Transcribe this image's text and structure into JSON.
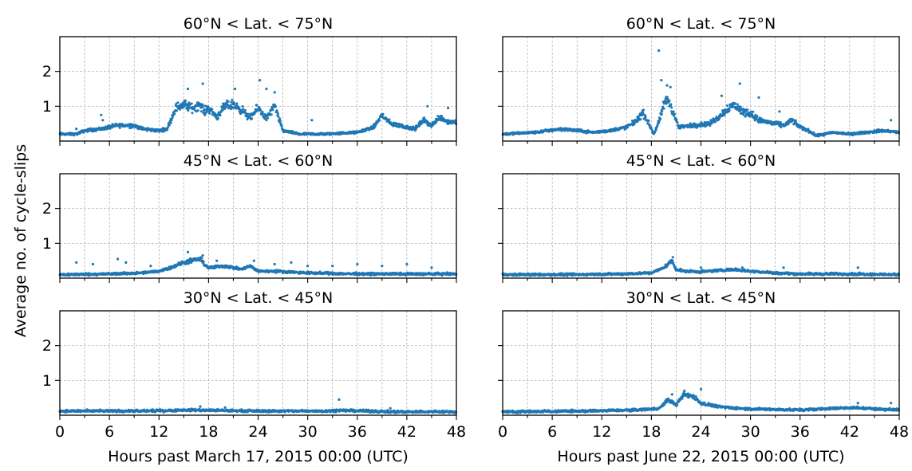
{
  "figure": {
    "ylabel": "Average no. of cycle-slips",
    "series_color": "#1f77b4"
  },
  "chart_data": [
    {
      "type": "scatter",
      "panel": "March 17 2015, high latitude",
      "title": "60°N < Lat. < 75°N",
      "xlabel": "",
      "ylabel": "",
      "xlim": [
        0,
        48
      ],
      "ylim": [
        0,
        3
      ],
      "xticks": [
        0,
        6,
        12,
        18,
        24,
        30,
        36,
        42,
        48
      ],
      "yticks": [
        1,
        2
      ],
      "xtick_labels_visible": false,
      "ytick_labels_visible": true,
      "grid": true,
      "baseline": [
        [
          0,
          0.2
        ],
        [
          2,
          0.2
        ],
        [
          3,
          0.3
        ],
        [
          5,
          0.35
        ],
        [
          7,
          0.45
        ],
        [
          9,
          0.45
        ],
        [
          10,
          0.35
        ],
        [
          12,
          0.3
        ],
        [
          13,
          0.35
        ],
        [
          14,
          0.95
        ],
        [
          15,
          1.05
        ],
        [
          16,
          0.95
        ],
        [
          17,
          1.05
        ],
        [
          17.5,
          0.85
        ],
        [
          18,
          0.95
        ],
        [
          19,
          0.7
        ],
        [
          20,
          1.0
        ],
        [
          21,
          1.05
        ],
        [
          22,
          0.9
        ],
        [
          23,
          0.65
        ],
        [
          24,
          0.95
        ],
        [
          25,
          0.65
        ],
        [
          26,
          1.0
        ],
        [
          27,
          0.3
        ],
        [
          29,
          0.2
        ],
        [
          32,
          0.2
        ],
        [
          36,
          0.25
        ],
        [
          38,
          0.4
        ],
        [
          39,
          0.75
        ],
        [
          40,
          0.5
        ],
        [
          42,
          0.4
        ],
        [
          43,
          0.35
        ],
        [
          44,
          0.6
        ],
        [
          45,
          0.45
        ],
        [
          46,
          0.7
        ],
        [
          47,
          0.55
        ],
        [
          48,
          0.55
        ]
      ],
      "outliers": [
        [
          2,
          0.35
        ],
        [
          5,
          0.75
        ],
        [
          5.2,
          0.6
        ],
        [
          15.5,
          1.5
        ],
        [
          17.3,
          1.65
        ],
        [
          21.2,
          1.5
        ],
        [
          24.2,
          1.75
        ],
        [
          25,
          1.5
        ],
        [
          26,
          1.4
        ],
        [
          30.5,
          0.6
        ],
        [
          37,
          0.35
        ],
        [
          44.5,
          1.0
        ],
        [
          47,
          0.95
        ]
      ]
    },
    {
      "type": "scatter",
      "panel": "June 22 2015, high latitude",
      "title": "60°N < Lat. < 75°N",
      "xlabel": "",
      "ylabel": "",
      "xlim": [
        0,
        48
      ],
      "ylim": [
        0,
        3
      ],
      "xticks": [
        0,
        6,
        12,
        18,
        24,
        30,
        36,
        42,
        48
      ],
      "yticks": [
        1,
        2
      ],
      "xtick_labels_visible": false,
      "ytick_labels_visible": false,
      "grid": true,
      "baseline": [
        [
          0,
          0.2
        ],
        [
          4,
          0.25
        ],
        [
          7,
          0.35
        ],
        [
          9,
          0.3
        ],
        [
          11,
          0.25
        ],
        [
          13,
          0.3
        ],
        [
          15,
          0.4
        ],
        [
          16,
          0.55
        ],
        [
          17,
          0.8
        ],
        [
          17.6,
          0.55
        ],
        [
          18.3,
          0.2
        ],
        [
          19,
          0.6
        ],
        [
          19.5,
          1.05
        ],
        [
          20,
          1.2
        ],
        [
          20.7,
          0.8
        ],
        [
          21.3,
          0.4
        ],
        [
          23,
          0.45
        ],
        [
          25,
          0.5
        ],
        [
          26,
          0.65
        ],
        [
          27,
          0.9
        ],
        [
          28,
          1.05
        ],
        [
          29,
          0.85
        ],
        [
          30,
          0.8
        ],
        [
          31,
          0.6
        ],
        [
          33,
          0.5
        ],
        [
          34,
          0.45
        ],
        [
          35,
          0.6
        ],
        [
          36,
          0.4
        ],
        [
          37,
          0.3
        ],
        [
          38,
          0.15
        ],
        [
          40,
          0.25
        ],
        [
          42,
          0.2
        ],
        [
          44,
          0.25
        ],
        [
          46,
          0.3
        ],
        [
          48,
          0.25
        ]
      ],
      "outliers": [
        [
          18.9,
          2.6
        ],
        [
          19.2,
          1.75
        ],
        [
          19.9,
          1.6
        ],
        [
          20.3,
          1.55
        ],
        [
          26.5,
          1.3
        ],
        [
          28.7,
          1.65
        ],
        [
          31,
          1.25
        ],
        [
          33.5,
          0.85
        ],
        [
          47,
          0.6
        ]
      ]
    },
    {
      "type": "scatter",
      "panel": "March 17 2015, mid latitude",
      "title": "45°N < Lat. < 60°N",
      "xlabel": "",
      "ylabel": "",
      "xlim": [
        0,
        48
      ],
      "ylim": [
        0,
        3
      ],
      "xticks": [
        0,
        6,
        12,
        18,
        24,
        30,
        36,
        42,
        48
      ],
      "yticks": [
        1,
        2
      ],
      "xtick_labels_visible": false,
      "ytick_labels_visible": true,
      "grid": true,
      "baseline": [
        [
          0,
          0.1
        ],
        [
          6,
          0.12
        ],
        [
          10,
          0.15
        ],
        [
          12,
          0.2
        ],
        [
          14,
          0.35
        ],
        [
          15,
          0.45
        ],
        [
          16,
          0.5
        ],
        [
          17,
          0.55
        ],
        [
          17.5,
          0.4
        ],
        [
          18,
          0.3
        ],
        [
          20,
          0.35
        ],
        [
          21,
          0.3
        ],
        [
          22,
          0.25
        ],
        [
          23,
          0.35
        ],
        [
          24,
          0.2
        ],
        [
          26,
          0.2
        ],
        [
          30,
          0.15
        ],
        [
          36,
          0.12
        ],
        [
          48,
          0.12
        ]
      ],
      "outliers": [
        [
          2,
          0.45
        ],
        [
          4,
          0.4
        ],
        [
          7,
          0.55
        ],
        [
          8,
          0.45
        ],
        [
          11,
          0.35
        ],
        [
          15.5,
          0.75
        ],
        [
          17.3,
          0.65
        ],
        [
          19,
          0.5
        ],
        [
          23.5,
          0.5
        ],
        [
          26,
          0.4
        ],
        [
          28,
          0.45
        ],
        [
          30,
          0.35
        ],
        [
          33,
          0.35
        ],
        [
          36,
          0.4
        ],
        [
          39,
          0.35
        ],
        [
          42,
          0.4
        ],
        [
          45,
          0.3
        ]
      ]
    },
    {
      "type": "scatter",
      "panel": "June 22 2015, mid latitude",
      "title": "45°N < Lat. < 60°N",
      "xlabel": "",
      "ylabel": "",
      "xlim": [
        0,
        48
      ],
      "ylim": [
        0,
        3
      ],
      "xticks": [
        0,
        6,
        12,
        18,
        24,
        30,
        36,
        42,
        48
      ],
      "yticks": [
        1,
        2
      ],
      "xtick_labels_visible": false,
      "ytick_labels_visible": false,
      "grid": true,
      "baseline": [
        [
          0,
          0.1
        ],
        [
          8,
          0.1
        ],
        [
          14,
          0.12
        ],
        [
          18,
          0.15
        ],
        [
          19.5,
          0.3
        ],
        [
          20.5,
          0.5
        ],
        [
          21,
          0.25
        ],
        [
          22,
          0.2
        ],
        [
          24,
          0.18
        ],
        [
          26,
          0.22
        ],
        [
          28,
          0.25
        ],
        [
          30,
          0.2
        ],
        [
          33,
          0.15
        ],
        [
          36,
          0.12
        ],
        [
          42,
          0.12
        ],
        [
          48,
          0.1
        ]
      ],
      "outliers": [
        [
          20.6,
          0.6
        ],
        [
          24,
          0.3
        ],
        [
          29,
          0.3
        ],
        [
          34,
          0.3
        ],
        [
          43,
          0.3
        ]
      ]
    },
    {
      "type": "scatter",
      "panel": "March 17 2015, low latitude",
      "title": "30°N < Lat. < 45°N",
      "xlabel": "Hours past March 17, 2015 00:00 (UTC)",
      "ylabel": "",
      "xlim": [
        0,
        48
      ],
      "ylim": [
        0,
        3
      ],
      "xticks": [
        0,
        6,
        12,
        18,
        24,
        30,
        36,
        42,
        48
      ],
      "yticks": [
        1,
        2
      ],
      "xtick_labels_visible": true,
      "ytick_labels_visible": true,
      "grid": true,
      "baseline": [
        [
          0,
          0.12
        ],
        [
          10,
          0.12
        ],
        [
          16,
          0.15
        ],
        [
          18,
          0.14
        ],
        [
          24,
          0.12
        ],
        [
          32,
          0.12
        ],
        [
          34,
          0.14
        ],
        [
          40,
          0.1
        ],
        [
          48,
          0.1
        ]
      ],
      "outliers": [
        [
          17,
          0.25
        ],
        [
          33.8,
          0.45
        ],
        [
          20,
          0.22
        ],
        [
          40,
          0.2
        ]
      ]
    },
    {
      "type": "scatter",
      "panel": "June 22 2015, low latitude",
      "title": "30°N < Lat. < 45°N",
      "xlabel": "Hours past June 22, 2015 00:00 (UTC)",
      "ylabel": "",
      "xlim": [
        0,
        48
      ],
      "ylim": [
        0,
        3
      ],
      "xticks": [
        0,
        6,
        12,
        18,
        24,
        30,
        36,
        42,
        48
      ],
      "yticks": [
        1,
        2
      ],
      "xtick_labels_visible": true,
      "ytick_labels_visible": false,
      "grid": true,
      "baseline": [
        [
          0,
          0.1
        ],
        [
          10,
          0.12
        ],
        [
          16,
          0.15
        ],
        [
          19,
          0.2
        ],
        [
          20,
          0.45
        ],
        [
          21,
          0.3
        ],
        [
          22,
          0.6
        ],
        [
          23,
          0.55
        ],
        [
          24,
          0.35
        ],
        [
          25,
          0.3
        ],
        [
          27,
          0.22
        ],
        [
          30,
          0.18
        ],
        [
          36,
          0.15
        ],
        [
          42,
          0.22
        ],
        [
          48,
          0.15
        ]
      ],
      "outliers": [
        [
          20.5,
          0.6
        ],
        [
          22,
          0.7
        ],
        [
          24,
          0.75
        ],
        [
          43,
          0.35
        ],
        [
          47,
          0.35
        ]
      ]
    }
  ]
}
